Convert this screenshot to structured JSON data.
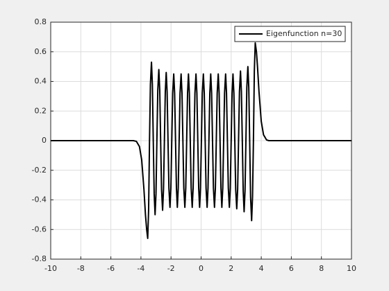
{
  "chart_data": {
    "type": "line",
    "x": [
      -10,
      -5,
      -4.5,
      -4.3,
      -4.1,
      -3.95,
      -3.8,
      -3.7,
      -3.62,
      -3.55,
      -3.49,
      -3.43,
      -3.37,
      -3.3,
      -3.24,
      -3.18,
      -3.12,
      -3.06,
      -3.0,
      -2.94,
      -2.88,
      -2.81,
      -2.75,
      -2.69,
      -2.63,
      -2.56,
      -2.5,
      -2.44,
      -2.38,
      -2.32,
      -2.26,
      -2.2,
      -2.14,
      -2.07,
      -2.01,
      -1.95,
      -1.89,
      -1.82,
      -1.76,
      -1.7,
      -1.64,
      -1.58,
      -1.52,
      -1.46,
      -1.4,
      -1.33,
      -1.27,
      -1.21,
      -1.15,
      -1.08,
      -1.02,
      -0.96,
      -0.9,
      -0.84,
      -0.78,
      -0.72,
      -0.66,
      -0.59,
      -0.53,
      -0.47,
      -0.41,
      -0.34,
      -0.28,
      -0.22,
      -0.16,
      -0.1,
      -0.04,
      0.02,
      0.08,
      0.15,
      0.21,
      0.27,
      0.33,
      0.4,
      0.46,
      0.52,
      0.58,
      0.64,
      0.7,
      0.76,
      0.82,
      0.89,
      0.95,
      1.01,
      1.07,
      1.14,
      1.2,
      1.26,
      1.32,
      1.38,
      1.44,
      1.5,
      1.56,
      1.63,
      1.69,
      1.75,
      1.81,
      1.88,
      1.94,
      2.0,
      2.06,
      2.12,
      2.18,
      2.24,
      2.3,
      2.37,
      2.43,
      2.49,
      2.55,
      2.62,
      2.68,
      2.74,
      2.8,
      2.86,
      2.92,
      2.98,
      3.04,
      3.11,
      3.17,
      3.23,
      3.29,
      3.36,
      3.42,
      3.48,
      3.54,
      3.6,
      3.68,
      3.75,
      3.85,
      4.0,
      4.15,
      4.35,
      4.5,
      5,
      10
    ],
    "series": [
      {
        "name": "Eigenfunction n=30",
        "color": "#000000",
        "values": [
          0,
          0,
          0,
          -0.005,
          -0.04,
          -0.13,
          -0.33,
          -0.5,
          -0.6,
          -0.66,
          -0.47,
          0,
          0.38,
          0.53,
          0.38,
          0,
          -0.36,
          -0.5,
          -0.36,
          0,
          0.34,
          0.48,
          0.34,
          0,
          -0.33,
          -0.47,
          -0.33,
          0,
          0.33,
          0.46,
          0.33,
          0,
          -0.32,
          -0.45,
          -0.32,
          0,
          0.32,
          0.45,
          0.32,
          0,
          -0.32,
          -0.45,
          -0.32,
          0,
          0.32,
          0.45,
          0.32,
          0,
          -0.32,
          -0.45,
          -0.32,
          0,
          0.32,
          0.45,
          0.32,
          0,
          -0.32,
          -0.45,
          -0.32,
          0,
          0.32,
          0.45,
          0.32,
          0,
          -0.32,
          -0.45,
          -0.32,
          0,
          0.32,
          0.45,
          0.32,
          0,
          -0.32,
          -0.45,
          -0.32,
          0,
          0.32,
          0.45,
          0.32,
          0,
          -0.32,
          -0.45,
          -0.32,
          0,
          0.32,
          0.45,
          0.32,
          0,
          -0.32,
          -0.45,
          -0.32,
          0,
          0.32,
          0.45,
          0.32,
          0,
          -0.32,
          -0.45,
          -0.32,
          0,
          0.32,
          0.45,
          0.32,
          0,
          -0.33,
          -0.46,
          -0.33,
          0,
          0.33,
          0.47,
          0.33,
          0,
          -0.34,
          -0.48,
          -0.34,
          0,
          0.36,
          0.5,
          0.36,
          0,
          -0.38,
          -0.54,
          -0.38,
          0,
          0.47,
          0.66,
          0.6,
          0.5,
          0.33,
          0.13,
          0.04,
          0.005,
          0,
          0,
          0
        ]
      }
    ],
    "xlim": [
      -10,
      10
    ],
    "xticks": [
      -10,
      -8,
      -6,
      -4,
      -2,
      0,
      2,
      4,
      6,
      8,
      10
    ],
    "ylim": [
      -0.8,
      0.8
    ],
    "yticks": [
      -0.8,
      -0.6,
      -0.4,
      -0.2,
      0,
      0.2,
      0.4,
      0.6,
      0.8
    ],
    "grid": true,
    "legend": "top-right"
  }
}
